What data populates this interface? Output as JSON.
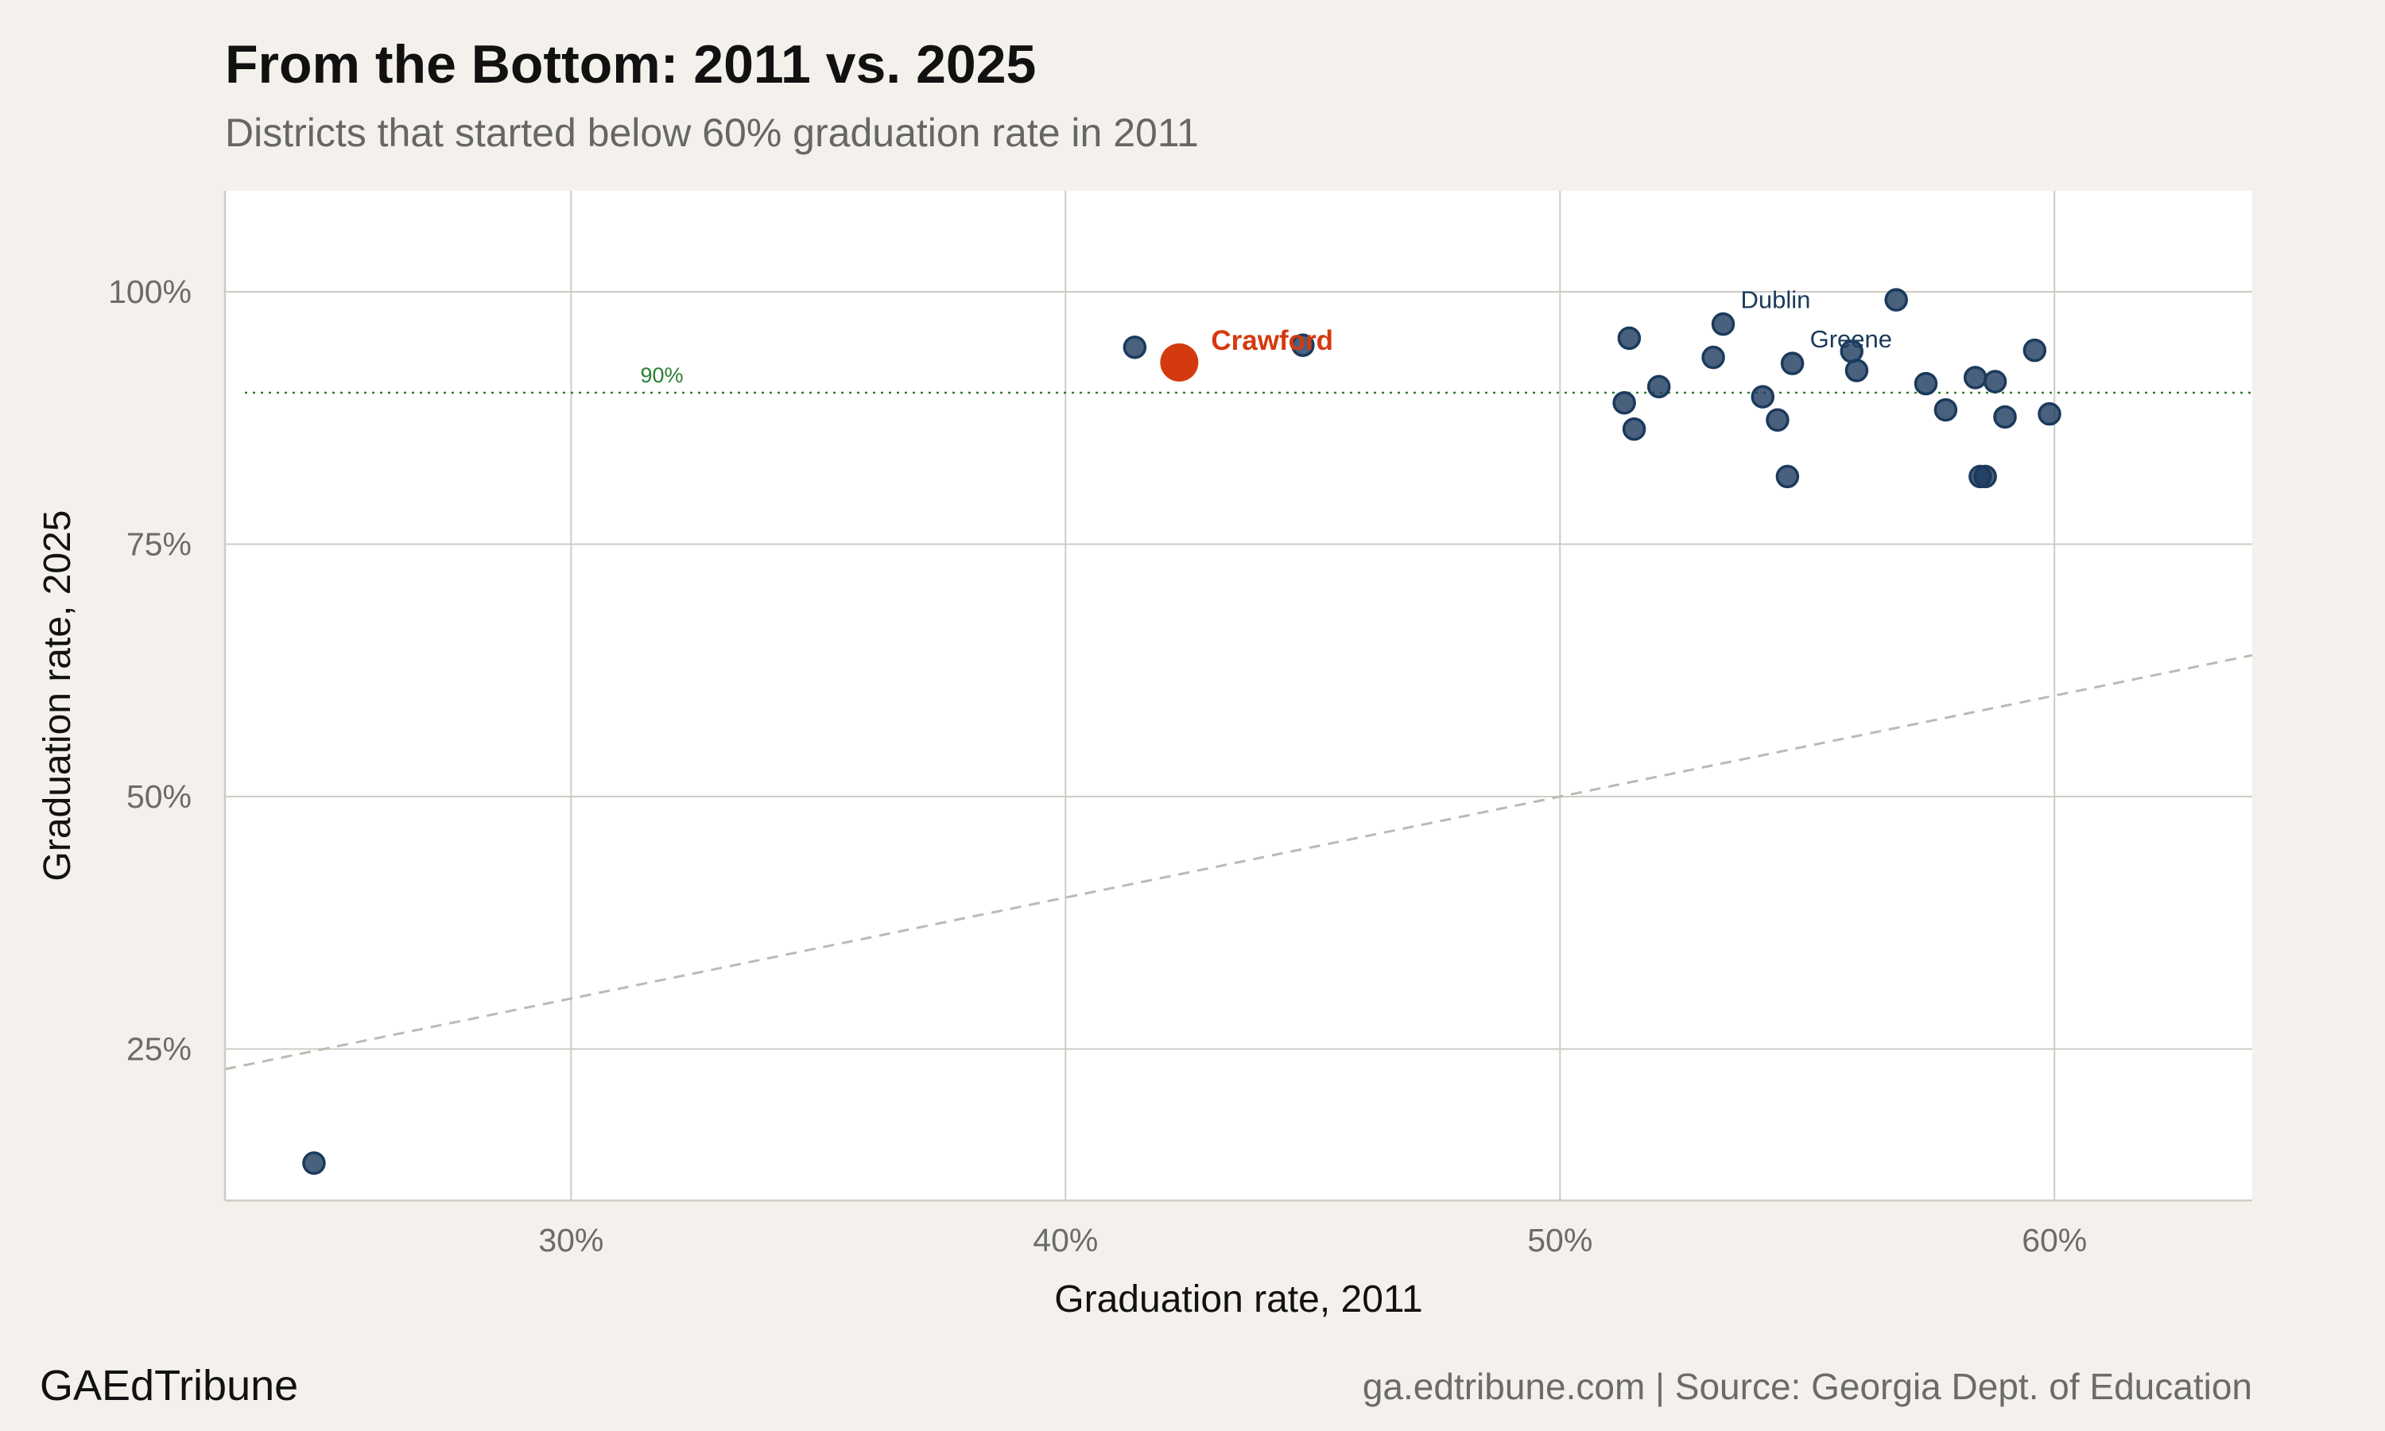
{
  "title": "From the Bottom: 2011 vs. 2025",
  "subtitle": "Districts that started below 60% graduation rate in 2011",
  "brand": "GAEdTribune",
  "source": "ga.edtribune.com | Source: Georgia Dept. of Education",
  "colors": {
    "background": "#f4f1ec",
    "panel": "#ffffff",
    "grid": "#cfcbc4",
    "point": "#1b3a5c",
    "highlight": "#d43a0f",
    "reference": "#2e7d32",
    "parity_line": "#bdbab4"
  },
  "chart_data": {
    "type": "scatter",
    "xlabel": "Graduation rate, 2011",
    "ylabel": "Graduation rate, 2025",
    "xlim": [
      23,
      64
    ],
    "ylim": [
      10,
      110
    ],
    "x_ticks": [
      30,
      40,
      50,
      60
    ],
    "x_tick_labels": [
      "30%",
      "40%",
      "50%",
      "60%"
    ],
    "y_ticks": [
      25,
      50,
      75,
      100
    ],
    "y_tick_labels": [
      "25%",
      "50%",
      "75%",
      "100%"
    ],
    "grid": true,
    "reference_line": {
      "y": 90,
      "label": "90%",
      "style": "dotted"
    },
    "parity_line": {
      "style": "dashed",
      "slope": 1
    },
    "highlight": {
      "name": "Crawford",
      "x": 42.3,
      "y": 93
    },
    "points": [
      {
        "x": 24.8,
        "y": 13.7
      },
      {
        "x": 41.4,
        "y": 94.5
      },
      {
        "x": 44.8,
        "y": 94.7
      },
      {
        "x": 51.3,
        "y": 89
      },
      {
        "x": 51.4,
        "y": 95.4
      },
      {
        "x": 51.5,
        "y": 86.4
      },
      {
        "x": 52.0,
        "y": 90.6
      },
      {
        "x": 53.1,
        "y": 93.5
      },
      {
        "x": 53.3,
        "y": 96.8,
        "label": "Dublin"
      },
      {
        "x": 54.1,
        "y": 89.6
      },
      {
        "x": 54.4,
        "y": 87.3
      },
      {
        "x": 54.6,
        "y": 81.7
      },
      {
        "x": 54.7,
        "y": 92.9,
        "label": "Greene"
      },
      {
        "x": 55.9,
        "y": 94.1
      },
      {
        "x": 56.0,
        "y": 92.2
      },
      {
        "x": 56.8,
        "y": 99.2
      },
      {
        "x": 57.4,
        "y": 90.9
      },
      {
        "x": 57.8,
        "y": 88.3
      },
      {
        "x": 58.4,
        "y": 91.5
      },
      {
        "x": 58.5,
        "y": 81.7
      },
      {
        "x": 58.6,
        "y": 81.7
      },
      {
        "x": 58.8,
        "y": 91.1
      },
      {
        "x": 59.0,
        "y": 87.6
      },
      {
        "x": 59.6,
        "y": 94.2
      },
      {
        "x": 59.9,
        "y": 87.9
      }
    ]
  }
}
